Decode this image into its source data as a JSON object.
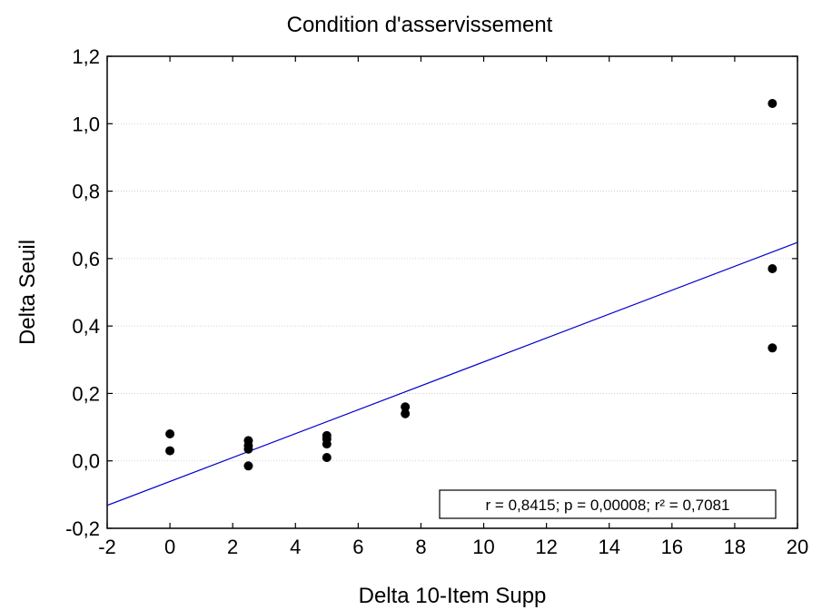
{
  "chart_data": {
    "type": "scatter",
    "title": "Condition d'asservissement",
    "xlabel": "Delta 10-Item Supp",
    "ylabel": "Delta Seuil",
    "xlim": [
      -2,
      20
    ],
    "ylim": [
      -0.2,
      1.2
    ],
    "xticks": [
      -2,
      0,
      2,
      4,
      6,
      8,
      10,
      12,
      14,
      16,
      18,
      20
    ],
    "xtick_labels": [
      "-2",
      "0",
      "2",
      "4",
      "6",
      "8",
      "10",
      "12",
      "14",
      "16",
      "18",
      "20"
    ],
    "yticks": [
      -0.2,
      0,
      0.2,
      0.4,
      0.6,
      0.8,
      1.0,
      1.2
    ],
    "ytick_labels": [
      "-0,2",
      "0,0",
      "0,2",
      "0,4",
      "0,6",
      "0,8",
      "1,0",
      "1,2"
    ],
    "grid": "horizontal dotted",
    "points": [
      {
        "x": 0,
        "y": 0.08
      },
      {
        "x": 0,
        "y": 0.03
      },
      {
        "x": 2.5,
        "y": 0.06
      },
      {
        "x": 2.5,
        "y": 0.045
      },
      {
        "x": 2.5,
        "y": 0.035
      },
      {
        "x": 2.5,
        "y": -0.015
      },
      {
        "x": 5,
        "y": 0.075
      },
      {
        "x": 5,
        "y": 0.065
      },
      {
        "x": 5,
        "y": 0.05
      },
      {
        "x": 5,
        "y": 0.01
      },
      {
        "x": 7.5,
        "y": 0.16
      },
      {
        "x": 7.5,
        "y": 0.14
      },
      {
        "x": 19.2,
        "y": 1.06
      },
      {
        "x": 19.2,
        "y": 0.57
      },
      {
        "x": 19.2,
        "y": 0.335
      }
    ],
    "fit_line": {
      "x": [
        -2,
        20
      ],
      "y": [
        -0.132,
        0.648
      ],
      "color": "#0000cc"
    },
    "annotation": "r = 0,8415; p = 0,00008; r² = 0,7081",
    "annotation_position": "bottom-right",
    "point_color": "#000000"
  }
}
